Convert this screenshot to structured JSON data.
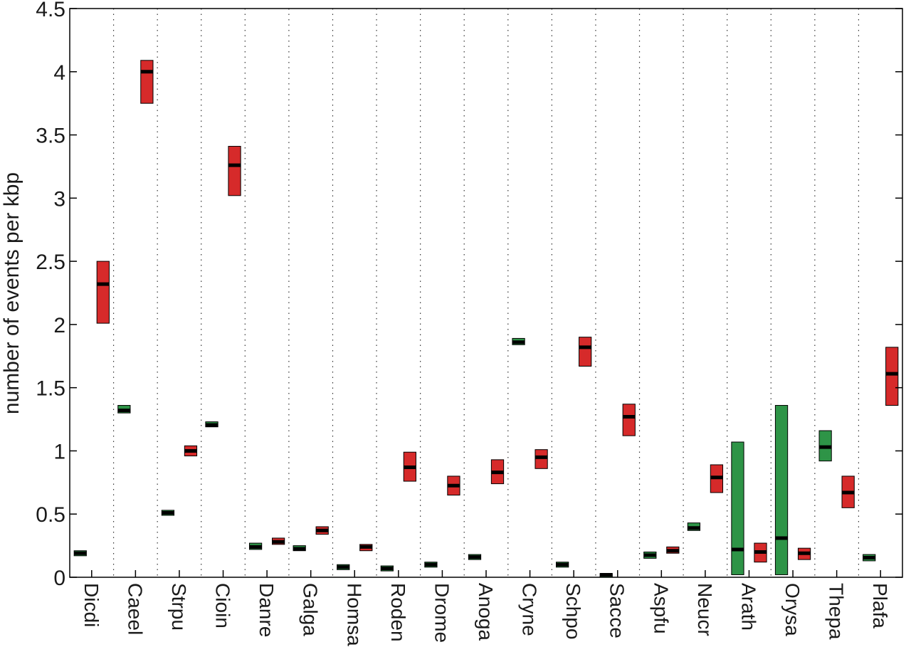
{
  "chart_data": {
    "type": "box",
    "ylabel": "number of events per kbp",
    "ylim": [
      0,
      4.5
    ],
    "yticks": [
      "0",
      "0.5",
      "1",
      "1.5",
      "2",
      "2.5",
      "3",
      "3.5",
      "4",
      "4.5"
    ],
    "grid": "vertical dotted separators between categories",
    "colors": {
      "green": "#2e9447",
      "red": "#d62a2a",
      "median": "#000000"
    },
    "categories": [
      "Dicdi",
      "Caeel",
      "Strpu",
      "Cioin",
      "Danre",
      "Galga",
      "Homsa",
      "Roden",
      "Drome",
      "Anoga",
      "Cryne",
      "Schpo",
      "Sacce",
      "Aspfu",
      "Neucr",
      "Arath",
      "Orysa",
      "Thepa",
      "Plafa"
    ],
    "series": [
      {
        "color": "green",
        "boxes": [
          {
            "low": 0.17,
            "median": 0.19,
            "high": 0.21
          },
          {
            "low": 1.3,
            "median": 1.32,
            "high": 1.36
          },
          {
            "low": 0.49,
            "median": 0.51,
            "high": 0.53
          },
          {
            "low": 1.19,
            "median": 1.205,
            "high": 1.23
          },
          {
            "low": 0.22,
            "median": 0.24,
            "high": 0.27
          },
          {
            "low": 0.21,
            "median": 0.225,
            "high": 0.25
          },
          {
            "low": 0.06,
            "median": 0.08,
            "high": 0.1
          },
          {
            "low": 0.05,
            "median": 0.07,
            "high": 0.09
          },
          {
            "low": 0.08,
            "median": 0.1,
            "high": 0.12
          },
          {
            "low": 0.14,
            "median": 0.16,
            "high": 0.18
          },
          {
            "low": 1.84,
            "median": 1.86,
            "high": 1.89
          },
          {
            "low": 0.08,
            "median": 0.1,
            "high": 0.12
          },
          {
            "low": 0.0,
            "median": 0.02,
            "high": 0.03
          },
          {
            "low": 0.15,
            "median": 0.175,
            "high": 0.2
          },
          {
            "low": 0.37,
            "median": 0.39,
            "high": 0.43
          },
          {
            "low": 0.02,
            "median": 0.22,
            "high": 1.07
          },
          {
            "low": 0.02,
            "median": 0.31,
            "high": 1.36
          },
          {
            "low": 0.92,
            "median": 1.03,
            "high": 1.16
          },
          {
            "low": 0.13,
            "median": 0.155,
            "high": 0.18
          }
        ]
      },
      {
        "color": "red",
        "boxes": [
          {
            "low": 2.01,
            "median": 2.32,
            "high": 2.5
          },
          {
            "low": 3.75,
            "median": 4.0,
            "high": 4.09
          },
          {
            "low": 0.96,
            "median": 1.0,
            "high": 1.04
          },
          {
            "low": 3.02,
            "median": 3.26,
            "high": 3.41
          },
          {
            "low": 0.26,
            "median": 0.28,
            "high": 0.31
          },
          {
            "low": 0.34,
            "median": 0.37,
            "high": 0.4
          },
          {
            "low": 0.21,
            "median": 0.24,
            "high": 0.26
          },
          {
            "low": 0.76,
            "median": 0.87,
            "high": 0.99
          },
          {
            "low": 0.65,
            "median": 0.725,
            "high": 0.8
          },
          {
            "low": 0.74,
            "median": 0.83,
            "high": 0.93
          },
          {
            "low": 0.86,
            "median": 0.95,
            "high": 1.01
          },
          {
            "low": 1.67,
            "median": 1.82,
            "high": 1.9
          },
          {
            "low": 1.12,
            "median": 1.27,
            "high": 1.37
          },
          {
            "low": 0.19,
            "median": 0.21,
            "high": 0.24
          },
          {
            "low": 0.67,
            "median": 0.79,
            "high": 0.89
          },
          {
            "low": 0.12,
            "median": 0.2,
            "high": 0.27
          },
          {
            "low": 0.14,
            "median": 0.19,
            "high": 0.23
          },
          {
            "low": 0.55,
            "median": 0.67,
            "high": 0.8
          },
          {
            "low": 1.36,
            "median": 1.61,
            "high": 1.82
          }
        ]
      }
    ]
  }
}
